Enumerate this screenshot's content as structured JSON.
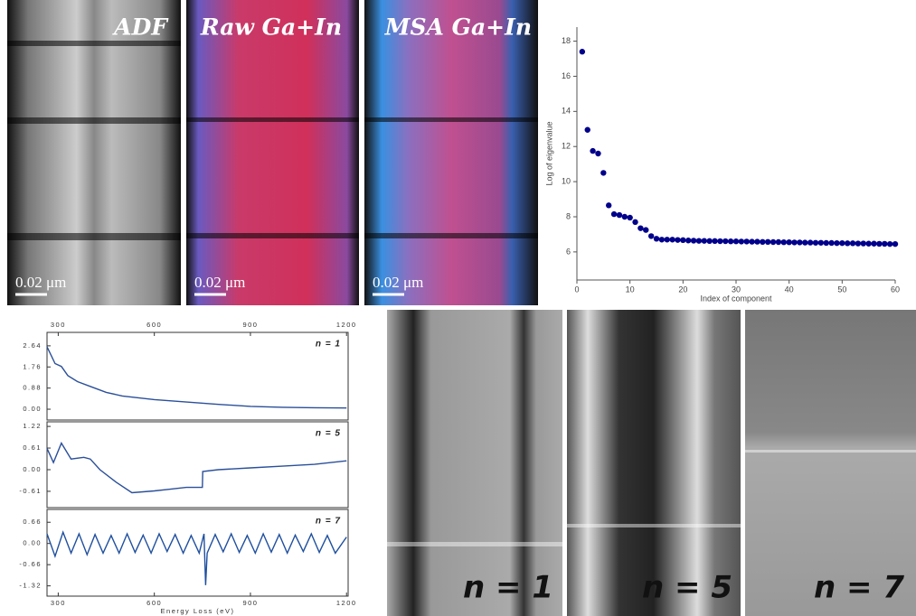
{
  "chart_data": [
    {
      "type": "scatter",
      "xlabel": "Index of component",
      "ylabel": "Log of eigenvalue",
      "color": "#00008b",
      "x": [
        1,
        2,
        3,
        4,
        5,
        6,
        7,
        8,
        9,
        10,
        11,
        12,
        13,
        14,
        15,
        16,
        17,
        18,
        19,
        20,
        21,
        22,
        23,
        24,
        25,
        26,
        27,
        28,
        29,
        30,
        31,
        32,
        33,
        34,
        35,
        36,
        37,
        38,
        39,
        40,
        41,
        42,
        43,
        44,
        45,
        46,
        47,
        48,
        49,
        50,
        51,
        52,
        53,
        54,
        55,
        56,
        57,
        58,
        59,
        60
      ],
      "values": [
        17.4,
        12.95,
        11.75,
        11.6,
        10.5,
        8.65,
        8.15,
        8.1,
        8.0,
        7.95,
        7.7,
        7.35,
        7.25,
        6.9,
        6.75,
        6.7,
        6.7,
        6.7,
        6.68,
        6.67,
        6.65,
        6.64,
        6.63,
        6.63,
        6.62,
        6.62,
        6.61,
        6.61,
        6.6,
        6.6,
        6.59,
        6.59,
        6.58,
        6.58,
        6.57,
        6.57,
        6.56,
        6.56,
        6.55,
        6.55,
        6.54,
        6.54,
        6.53,
        6.53,
        6.52,
        6.52,
        6.51,
        6.51,
        6.5,
        6.5,
        6.49,
        6.49,
        6.48,
        6.48,
        6.47,
        6.47,
        6.46,
        6.46,
        6.45,
        6.45
      ],
      "xlim": [
        0,
        60
      ],
      "xticks": [
        0,
        10,
        20,
        30,
        40,
        50,
        60
      ],
      "ylim": [
        4.4,
        18.8
      ],
      "yticks": [
        6,
        8,
        10,
        12,
        14,
        16,
        18
      ]
    },
    {
      "type": "line",
      "title": "n = 1",
      "color": "#2a4f9a",
      "x": [
        265,
        290,
        310,
        330,
        360,
        400,
        450,
        500,
        600,
        700,
        800,
        900,
        1000,
        1100,
        1200
      ],
      "values": [
        2.6,
        1.9,
        1.78,
        1.4,
        1.15,
        0.95,
        0.7,
        0.55,
        0.4,
        0.3,
        0.2,
        0.12,
        0.08,
        0.06,
        0.05
      ],
      "xlim": [
        265,
        1205
      ],
      "xticks": [
        300,
        600,
        900,
        1200
      ],
      "ylim": [
        -0.45,
        3.2
      ],
      "yticks": [
        2.64,
        1.76,
        0.88,
        {
          "value": 0,
          "label": "0.00"
        }
      ]
    },
    {
      "type": "line",
      "title": "n = 5",
      "color": "#2a4f9a",
      "x": [
        265,
        285,
        310,
        340,
        380,
        400,
        430,
        480,
        530,
        600,
        650,
        700,
        750,
        751,
        800,
        900,
        1000,
        1100,
        1200
      ],
      "values": [
        0.6,
        0.2,
        0.75,
        0.3,
        0.35,
        0.3,
        0.0,
        -0.35,
        -0.65,
        -0.6,
        -0.55,
        -0.5,
        -0.5,
        -0.05,
        0.0,
        0.05,
        0.1,
        0.15,
        0.25
      ],
      "xlim": [
        265,
        1205
      ],
      "ylim": [
        -1.07,
        1.35
      ],
      "yticks": [
        1.22,
        0.61,
        {
          "value": 0,
          "label": "0.00"
        },
        -0.61
      ]
    },
    {
      "type": "line",
      "title": "n = 7",
      "color": "#1f4f9e",
      "xlabel": "Energy Loss (eV)",
      "x": [
        265,
        290,
        315,
        340,
        365,
        390,
        415,
        440,
        465,
        490,
        515,
        540,
        565,
        590,
        615,
        640,
        665,
        690,
        715,
        740,
        755,
        760,
        765,
        790,
        815,
        840,
        865,
        890,
        915,
        940,
        965,
        990,
        1015,
        1040,
        1065,
        1090,
        1115,
        1140,
        1165,
        1200
      ],
      "values": [
        0.3,
        -0.4,
        0.35,
        -0.3,
        0.3,
        -0.35,
        0.28,
        -0.3,
        0.25,
        -0.3,
        0.3,
        -0.28,
        0.26,
        -0.3,
        0.3,
        -0.25,
        0.28,
        -0.3,
        0.25,
        -0.3,
        0.3,
        -1.3,
        -0.3,
        0.28,
        -0.26,
        0.3,
        -0.28,
        0.25,
        -0.3,
        0.3,
        -0.27,
        0.28,
        -0.3,
        0.26,
        -0.25,
        0.3,
        -0.28,
        0.25,
        -0.3,
        0.2
      ],
      "xlim": [
        265,
        1205
      ],
      "xticks": [
        300,
        600,
        900,
        1200
      ],
      "ylim": [
        -1.64,
        1.06
      ],
      "yticks": [
        0.66,
        {
          "value": 0,
          "label": "0.00"
        },
        -0.66,
        -1.32
      ]
    }
  ],
  "images": {
    "top": [
      {
        "label": "ADF",
        "scale": "0.02 μm"
      },
      {
        "label": "Raw Ga+In",
        "scale": "0.02 μm"
      },
      {
        "label": "MSA Ga+In",
        "scale": "0.02 μm"
      }
    ],
    "bottom": [
      {
        "label": "n = 1"
      },
      {
        "label": "n = 5"
      },
      {
        "label": "n = 7"
      }
    ]
  }
}
